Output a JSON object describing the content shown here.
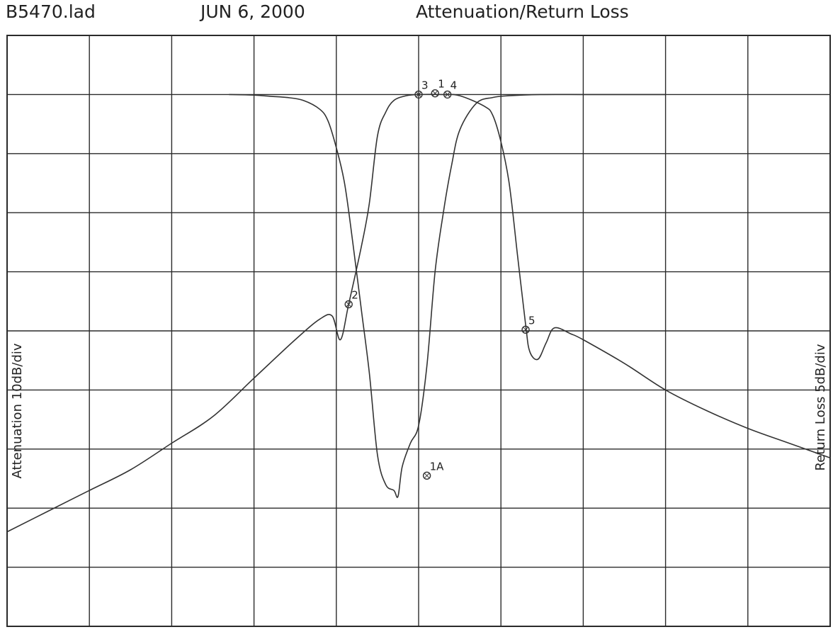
{
  "header": {
    "file_name": "B5470.lad",
    "date": "JUN 6, 2000",
    "title": "Attenuation/Return Loss"
  },
  "axes": {
    "left_label": "Attenuation 10dB/div",
    "right_label": "Return Loss 5dB/div"
  },
  "colors": {
    "grid": "#2a2a2a",
    "curve": "#333333",
    "background": "#ffffff"
  },
  "chart_data": {
    "type": "line",
    "title": "Attenuation/Return Loss",
    "xlabel": "",
    "ylabel": "Attenuation 10dB/div",
    "ylabel_right": "Return Loss 5dB/div",
    "x_divisions": 10,
    "y_divisions": 10,
    "grid": true,
    "x_unit": "div",
    "y_unit": "div below top",
    "series": [
      {
        "values": [
          [
            2.7,
            1.0
          ],
          [
            3.0,
            1.01
          ],
          [
            3.2,
            1.03
          ],
          [
            3.4,
            1.05
          ],
          [
            3.6,
            1.1
          ],
          [
            3.8,
            1.25
          ],
          [
            3.9,
            1.45
          ],
          [
            4.0,
            1.9
          ],
          [
            4.1,
            2.5
          ],
          [
            4.2,
            3.5
          ],
          [
            4.3,
            4.6
          ],
          [
            4.4,
            5.7
          ],
          [
            4.5,
            7.1
          ],
          [
            4.6,
            7.6
          ],
          [
            4.7,
            7.7
          ],
          [
            4.75,
            7.8
          ],
          [
            4.8,
            7.3
          ],
          [
            4.9,
            6.9
          ],
          [
            5.0,
            6.6
          ],
          [
            5.1,
            5.6
          ],
          [
            5.2,
            4.0
          ],
          [
            5.3,
            3.0
          ],
          [
            5.4,
            2.2
          ],
          [
            5.5,
            1.6
          ],
          [
            5.7,
            1.15
          ],
          [
            5.9,
            1.05
          ],
          [
            6.1,
            1.02
          ],
          [
            6.5,
            1.0
          ],
          [
            7.0,
            1.0
          ],
          [
            7.5,
            1.0
          ],
          [
            8.0,
            1.0
          ]
        ]
      },
      {
        "values": [
          [
            0.0,
            8.4
          ],
          [
            0.5,
            8.05
          ],
          [
            1.0,
            7.7
          ],
          [
            1.5,
            7.35
          ],
          [
            2.0,
            6.9
          ],
          [
            2.5,
            6.45
          ],
          [
            3.0,
            5.8
          ],
          [
            3.5,
            5.15
          ],
          [
            3.8,
            4.8
          ],
          [
            3.95,
            4.75
          ],
          [
            4.05,
            5.15
          ],
          [
            4.15,
            4.55
          ],
          [
            4.3,
            3.6
          ],
          [
            4.4,
            2.85
          ],
          [
            4.5,
            1.7
          ],
          [
            4.6,
            1.3
          ],
          [
            4.7,
            1.1
          ],
          [
            4.85,
            1.02
          ],
          [
            5.0,
            1.0
          ],
          [
            5.3,
            1.0
          ],
          [
            5.5,
            1.02
          ],
          [
            5.8,
            1.2
          ],
          [
            5.9,
            1.35
          ],
          [
            6.0,
            1.8
          ],
          [
            6.1,
            2.5
          ],
          [
            6.2,
            3.7
          ],
          [
            6.3,
            4.9
          ],
          [
            6.35,
            5.35
          ],
          [
            6.45,
            5.48
          ],
          [
            6.55,
            5.2
          ],
          [
            6.65,
            4.95
          ],
          [
            6.85,
            5.05
          ],
          [
            7.0,
            5.15
          ],
          [
            7.5,
            5.55
          ],
          [
            8.0,
            6.0
          ],
          [
            8.5,
            6.35
          ],
          [
            9.0,
            6.65
          ],
          [
            9.5,
            6.9
          ],
          [
            10.0,
            7.15
          ]
        ]
      }
    ],
    "markers": [
      {
        "label": "3",
        "x": 5.0,
        "y": 1.0
      },
      {
        "label": "1",
        "x": 5.2,
        "y": 0.98
      },
      {
        "label": "4",
        "x": 5.35,
        "y": 1.0
      },
      {
        "label": "2",
        "x": 4.15,
        "y": 4.55
      },
      {
        "label": "5",
        "x": 6.3,
        "y": 4.98
      },
      {
        "label": "1A",
        "x": 5.1,
        "y": 7.45
      }
    ]
  }
}
